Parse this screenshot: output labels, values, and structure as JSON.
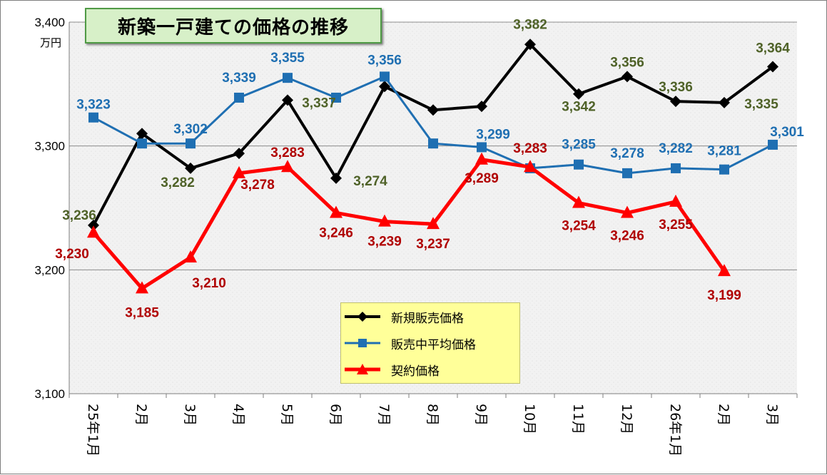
{
  "title": "新築一戸建ての価格の推移",
  "unit_label": "万円",
  "colors": {
    "series_1": "#000000",
    "series_2": "#1f6fb2",
    "series_3": "#ff0000",
    "label_1": "#4f6228",
    "label_2": "#1f6fb2",
    "label_3": "#b00000",
    "title_bg": "#d7f0c8",
    "legend_bg": "#ffff99"
  },
  "chart_data": {
    "type": "line",
    "categories": [
      "25年1月",
      "2月",
      "3月",
      "4月",
      "5月",
      "6月",
      "7月",
      "8月",
      "9月",
      "10月",
      "11月",
      "12月",
      "26年1月",
      "2月",
      "3月"
    ],
    "y_ticks": [
      "3,100",
      "3,200",
      "3,300",
      "3,400"
    ],
    "ylim": [
      3100,
      3400
    ],
    "grid": "horizontal",
    "legend_position": "bottom-center",
    "series": [
      {
        "name": "新規販売価格",
        "marker": "diamond",
        "values": [
          3236,
          3310,
          3282,
          3294,
          3337,
          3274,
          3348,
          3329,
          3332,
          3382,
          3342,
          3356,
          3336,
          3335,
          3364
        ],
        "labels": [
          "3,236",
          null,
          "3,282",
          null,
          "3,337",
          "3,274",
          null,
          null,
          null,
          "3,382",
          "3,342",
          "3,356",
          "3,336",
          "3,335",
          "3,364"
        ]
      },
      {
        "name": "販売中平均価格",
        "marker": "square",
        "values": [
          3323,
          3302,
          3302,
          3339,
          3355,
          3339,
          3356,
          3302,
          3299,
          3282,
          3285,
          3278,
          3282,
          3281,
          3301
        ],
        "labels": [
          "3,323",
          null,
          "3,302",
          "3,339",
          "3,355",
          null,
          "3,356",
          null,
          "3,299",
          null,
          "3,285",
          "3,278",
          "3,282",
          "3,281",
          "3,301"
        ]
      },
      {
        "name": "契約価格",
        "marker": "triangle",
        "values": [
          3230,
          3185,
          3210,
          3278,
          3283,
          3246,
          3239,
          3237,
          3289,
          3283,
          3254,
          3246,
          3255,
          3199,
          null
        ],
        "labels": [
          "3,230",
          "3,185",
          "3,210",
          "3,278",
          "3,283",
          "3,246",
          "3,239",
          "3,237",
          "3,289",
          "3,283",
          "3,254",
          "3,246",
          "3,255",
          "3,199",
          null
        ]
      }
    ]
  }
}
